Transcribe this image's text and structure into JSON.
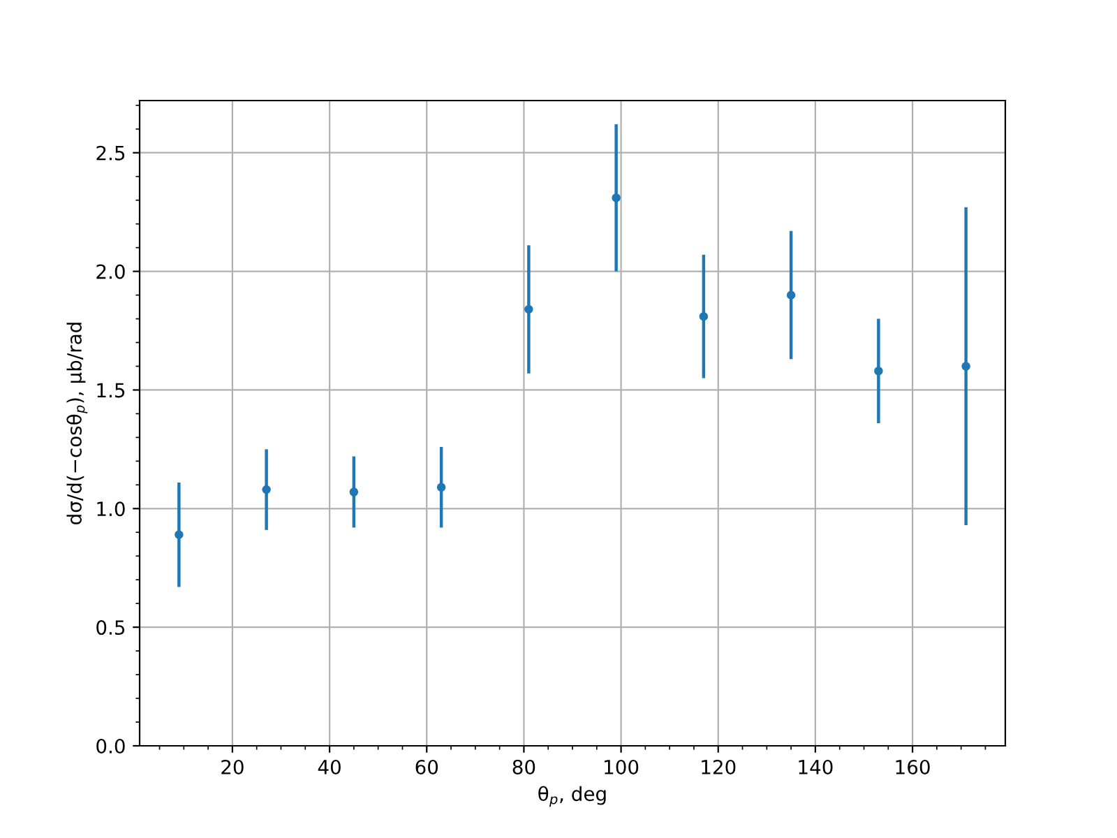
{
  "chart_data": {
    "type": "scatter",
    "xlabel": "θ$_{p}$, deg",
    "ylabel": "dσ/d(−cosθ$_{p}$), μb/rad",
    "x": [
      9,
      27,
      45,
      63,
      81,
      99,
      117,
      135,
      153,
      171
    ],
    "series": [
      {
        "color": "#1f77b4",
        "values": [
          0.89,
          1.08,
          1.07,
          1.09,
          1.84,
          2.31,
          1.81,
          1.9,
          1.58,
          1.6
        ],
        "errors": [
          0.22,
          0.17,
          0.15,
          0.17,
          0.27,
          0.31,
          0.26,
          0.27,
          0.22,
          0.67
        ]
      }
    ],
    "xlim": [
      0.9,
      179.1
    ],
    "xticks": [
      20,
      40,
      60,
      80,
      100,
      120,
      140,
      160
    ],
    "ylim": [
      0,
      2.72
    ],
    "yticks": [
      {
        "value": 0,
        "label": "0.0"
      },
      0.5,
      {
        "value": 1,
        "label": "1.0"
      },
      1.5,
      {
        "value": 2,
        "label": "2.0"
      },
      2.5
    ],
    "grid": true,
    "marker": "circle",
    "legend": false
  }
}
